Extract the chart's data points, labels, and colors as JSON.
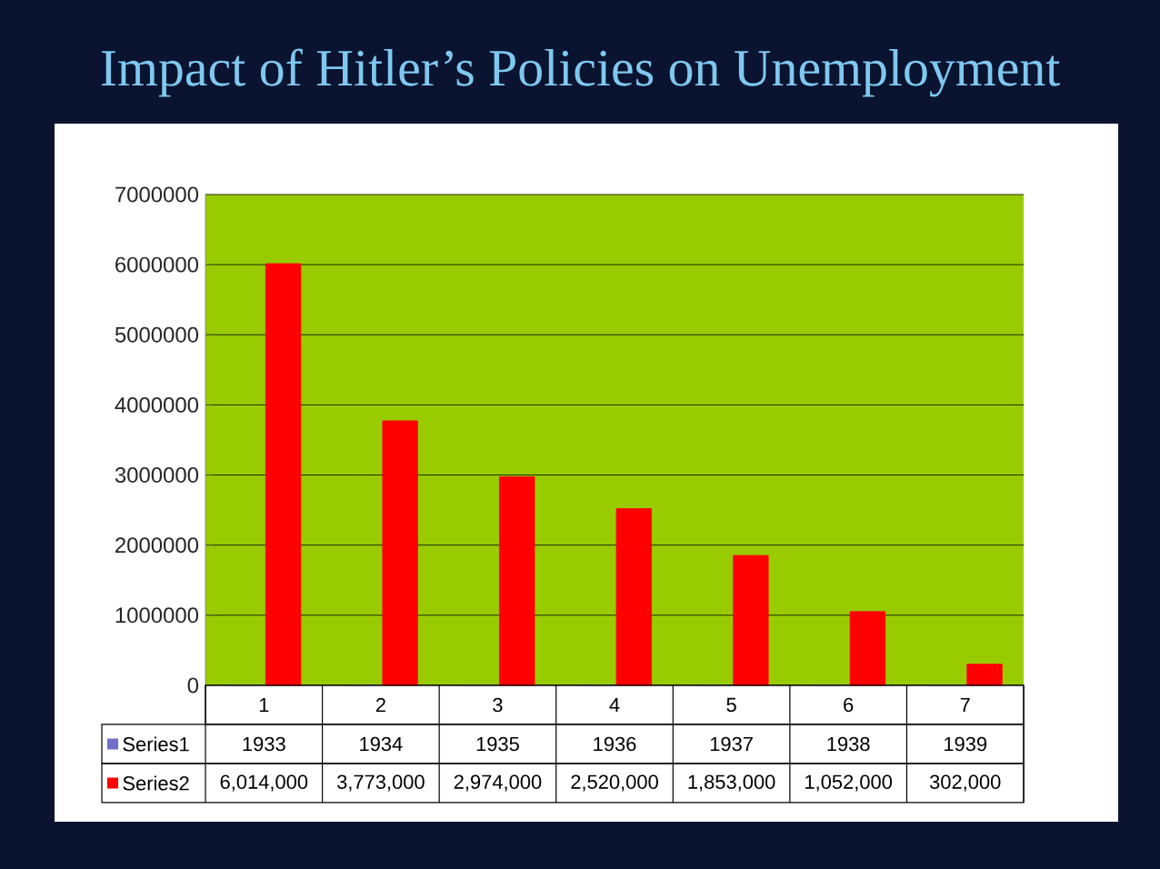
{
  "chart_data": {
    "type": "bar",
    "title": "Impact of Hitler’s Policies on Unemployment",
    "categories": [
      "1",
      "2",
      "3",
      "4",
      "5",
      "6",
      "7"
    ],
    "series": [
      {
        "name": "Series1",
        "color": "#7070c8",
        "values": [
          1933,
          1934,
          1935,
          1936,
          1937,
          1938,
          1939
        ],
        "value_labels": [
          "1933",
          "1934",
          "1935",
          "1936",
          "1937",
          "1938",
          "1939"
        ]
      },
      {
        "name": "Series2",
        "color": "#ff0000",
        "values": [
          6014000,
          3773000,
          2974000,
          2520000,
          1853000,
          1052000,
          302000
        ],
        "value_labels": [
          "6,014,000",
          "3,773,000",
          "2,974,000",
          "2,520,000",
          "1,853,000",
          "1,052,000",
          "302,000"
        ]
      }
    ],
    "ylim": [
      0,
      7000000
    ],
    "yticks": [
      0,
      1000000,
      2000000,
      3000000,
      4000000,
      5000000,
      6000000,
      7000000
    ],
    "grid": "y",
    "legend": "bottom"
  }
}
